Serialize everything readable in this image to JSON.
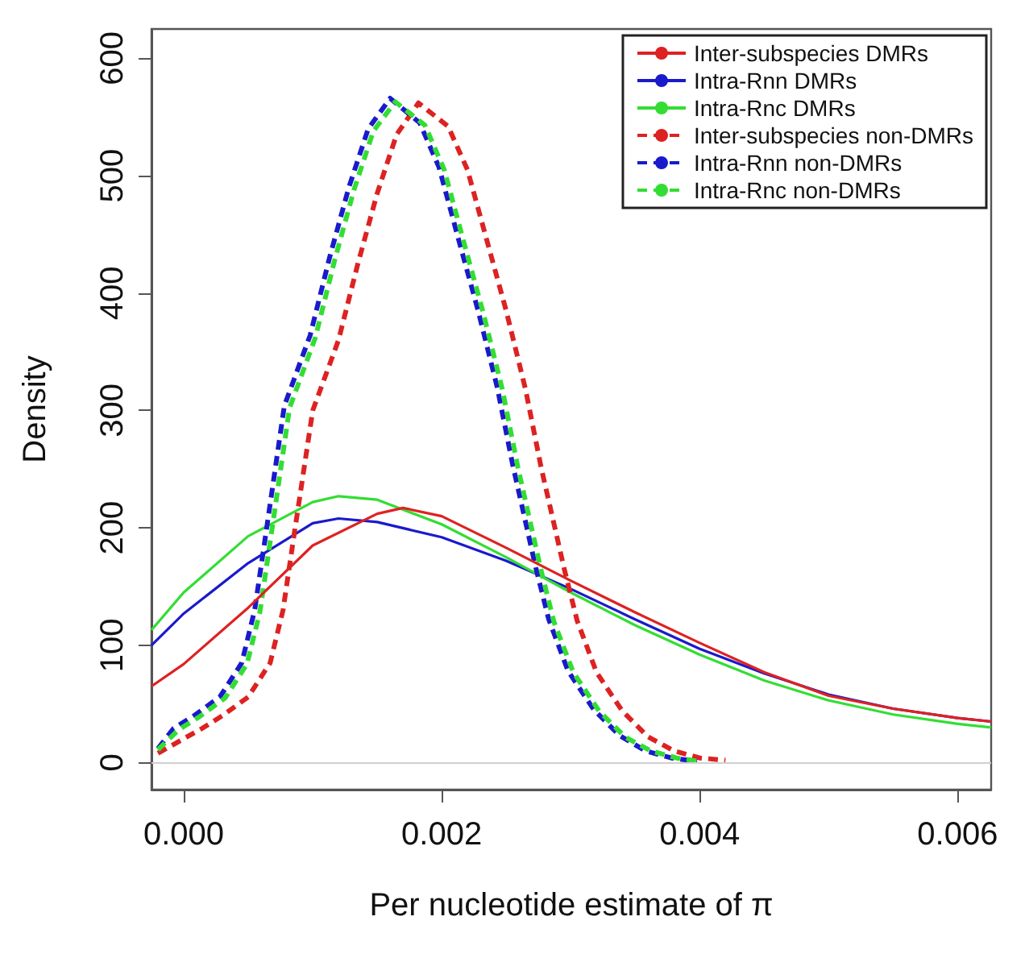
{
  "chart_data": {
    "type": "line",
    "xlabel": "Per nucleotide estimate of π",
    "ylabel": "Density",
    "xlim": [
      -0.00025,
      0.00626
    ],
    "xticks": [
      {
        "value": 0,
        "label": "0.000"
      },
      0.002,
      0.004,
      0.006
    ],
    "ylim": [
      -23,
      625
    ],
    "yticks": [
      0,
      100,
      200,
      300,
      400,
      500,
      600
    ],
    "grid": false,
    "legend": "top right",
    "marker": "none",
    "ref_lines": [
      {
        "axis": "y",
        "value": 0,
        "label": null,
        "color": "#d0d0d0"
      }
    ],
    "series": [
      {
        "name": "Inter-subspecies DMRs",
        "color": "#dd2222",
        "line_style": "solid",
        "x": [
          -0.00025,
          0,
          0.0005,
          0.001,
          0.0015,
          0.0017,
          0.002,
          0.0025,
          0.003,
          0.0035,
          0.004,
          0.0045,
          0.005,
          0.0055,
          0.006,
          0.00626
        ],
        "values": [
          65,
          84,
          132,
          185,
          212,
          217,
          210,
          183,
          155,
          128,
          102,
          77,
          57,
          46,
          38,
          35
        ]
      },
      {
        "name": "Intra-Rnn DMRs",
        "color": "#1a1acc",
        "line_style": "solid",
        "x": [
          -0.00025,
          0,
          0.0005,
          0.001,
          0.0012,
          0.0015,
          0.002,
          0.0025,
          0.003,
          0.0035,
          0.004,
          0.0045,
          0.005,
          0.0055,
          0.006,
          0.00626
        ],
        "values": [
          100,
          127,
          170,
          204,
          208,
          205,
          192,
          172,
          148,
          122,
          97,
          76,
          58,
          46,
          38,
          35
        ]
      },
      {
        "name": "Intra-Rnc DMRs",
        "color": "#33dd33",
        "line_style": "solid",
        "x": [
          -0.00025,
          0,
          0.0005,
          0.001,
          0.0012,
          0.0015,
          0.002,
          0.0025,
          0.003,
          0.0035,
          0.004,
          0.0045,
          0.005,
          0.0055,
          0.006,
          0.00626
        ],
        "values": [
          113,
          145,
          193,
          222,
          227,
          224,
          203,
          175,
          145,
          117,
          92,
          70,
          53,
          41,
          33,
          30
        ]
      },
      {
        "name": "Inter-subspecies non-DMRs",
        "color": "#dd2222",
        "line_style": "dashed",
        "x": [
          -0.0002,
          0.00014,
          0.0003,
          0.0005,
          0.00067,
          0.00077,
          0.00085,
          0.001,
          0.0012,
          0.00135,
          0.0015,
          0.00165,
          0.00182,
          0.00205,
          0.0022,
          0.00235,
          0.0025,
          0.00265,
          0.00277,
          0.00295,
          0.00305,
          0.0032,
          0.0034,
          0.0036,
          0.0038,
          0.004,
          0.0042
        ],
        "values": [
          8,
          29,
          40,
          56,
          85,
          130,
          190,
          300,
          360,
          425,
          485,
          535,
          562,
          542,
          505,
          445,
          385,
          318,
          252,
          165,
          121,
          77,
          44,
          22,
          10,
          4,
          2
        ]
      },
      {
        "name": "Intra-Rnn non-DMRs",
        "color": "#1a1acc",
        "line_style": "dashed",
        "x": [
          -0.0002,
          -8e-05,
          8e-05,
          0.00028,
          0.00045,
          0.00055,
          0.00063,
          0.00078,
          0.00098,
          0.00113,
          0.00128,
          0.00143,
          0.0016,
          0.00183,
          0.00198,
          0.00213,
          0.00228,
          0.00243,
          0.00255,
          0.00273,
          0.00283,
          0.00298,
          0.00318,
          0.00338,
          0.00358,
          0.00378,
          0.00398
        ],
        "values": [
          12,
          29,
          40,
          56,
          85,
          130,
          190,
          304,
          364,
          430,
          490,
          540,
          566,
          545,
          507,
          446,
          386,
          320,
          254,
          166,
          122,
          78,
          45,
          23,
          10,
          4,
          1
        ]
      },
      {
        "name": "Intra-Rnc non-DMRs",
        "color": "#33dd33",
        "line_style": "dashed",
        "x": [
          -0.0002,
          -4e-05,
          0.00012,
          0.00032,
          0.00049,
          0.00059,
          0.00067,
          0.00082,
          0.00102,
          0.00117,
          0.00132,
          0.00147,
          0.00164,
          0.00187,
          0.00202,
          0.00217,
          0.00232,
          0.00247,
          0.00259,
          0.00277,
          0.00287,
          0.00302,
          0.00322,
          0.00342,
          0.00362,
          0.00382,
          0.004
        ],
        "values": [
          11,
          28,
          39,
          55,
          84,
          128,
          188,
          302,
          362,
          428,
          488,
          538,
          563,
          543,
          505,
          444,
          384,
          318,
          252,
          164,
          120,
          77,
          44,
          22,
          10,
          4,
          1
        ]
      }
    ]
  }
}
